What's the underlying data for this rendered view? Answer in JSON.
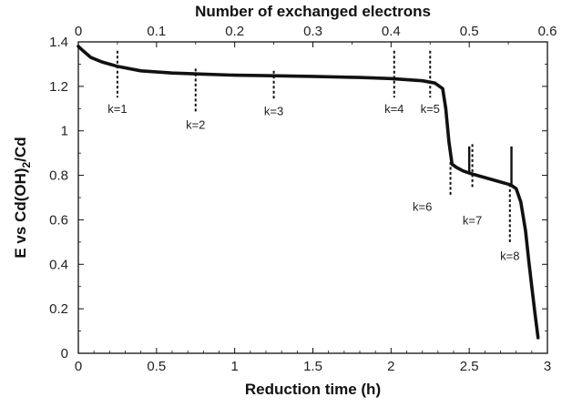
{
  "chart_data": {
    "type": "line",
    "title": "",
    "xlabel": "Reduction time (h)",
    "x2label": "Number of exchanged electrons",
    "ylabel_parts": {
      "main": "E vs Cd(OH)",
      "sub": "2",
      "tail": "/Cd"
    },
    "xlim": [
      0,
      3
    ],
    "x2lim": [
      0,
      0.6
    ],
    "ylim": [
      0,
      1.4
    ],
    "xticks": [
      0,
      0.5,
      1,
      1.5,
      2,
      2.5,
      3
    ],
    "xtick_labels": [
      "0",
      "0.5",
      "1",
      "1.5",
      "2",
      "2.5",
      "3"
    ],
    "x2ticks": [
      0,
      0.1,
      0.2,
      0.3,
      0.4,
      0.5,
      0.6
    ],
    "x2tick_labels": [
      "0",
      "0.1",
      "0.2",
      "0.3",
      "0.4",
      "0.5",
      "0.6"
    ],
    "yticks": [
      0,
      0.2,
      0.4,
      0.6,
      0.8,
      1,
      1.2,
      1.4
    ],
    "ytick_labels": [
      "0",
      "0.2",
      "0.4",
      "0.6",
      "0.8",
      "1",
      "1.2",
      "1.4"
    ],
    "grid": false,
    "legend": "none",
    "line_color": "#111111",
    "series": [
      {
        "x": [
          0,
          0.03,
          0.08,
          0.15,
          0.25,
          0.4,
          0.6,
          0.8,
          1.0,
          1.2,
          1.5,
          1.8,
          2.0,
          2.2,
          2.28,
          2.33,
          2.35,
          2.37,
          2.39,
          2.42,
          2.46,
          2.5,
          2.55,
          2.6,
          2.7,
          2.75,
          2.77,
          2.8,
          2.83,
          2.86,
          2.88,
          2.9,
          2.92,
          2.94
        ],
        "y": [
          1.38,
          1.36,
          1.33,
          1.31,
          1.29,
          1.27,
          1.26,
          1.255,
          1.25,
          1.248,
          1.245,
          1.24,
          1.235,
          1.225,
          1.215,
          1.19,
          1.1,
          0.95,
          0.85,
          0.835,
          0.82,
          0.81,
          0.8,
          0.79,
          0.77,
          0.76,
          0.755,
          0.74,
          0.68,
          0.55,
          0.42,
          0.3,
          0.18,
          0.07
        ]
      }
    ],
    "spikes": [
      {
        "x": 2.5,
        "y_from": 0.81,
        "y_to": 0.93
      },
      {
        "x": 2.77,
        "y_from": 0.76,
        "y_to": 0.93
      }
    ],
    "k_markers": [
      {
        "label": "k=1",
        "x": 0.25,
        "y_top": 1.36,
        "y_bottom": 1.15,
        "label_y": 1.08
      },
      {
        "label": "k=2",
        "x": 0.75,
        "y_top": 1.28,
        "y_bottom": 1.08,
        "label_y": 1.01
      },
      {
        "label": "k=3",
        "x": 1.25,
        "y_top": 1.27,
        "y_bottom": 1.14,
        "label_y": 1.07
      },
      {
        "label": "k=4",
        "x": 2.02,
        "y_top": 1.36,
        "y_bottom": 1.15,
        "label_y": 1.08
      },
      {
        "label": "k=5",
        "x": 2.25,
        "y_top": 1.36,
        "y_bottom": 1.15,
        "label_y": 1.08
      },
      {
        "label": "k=6",
        "x": 2.38,
        "y_top": 0.86,
        "y_bottom": 0.71,
        "label_y": 0.64,
        "label_dx": -0.18
      },
      {
        "label": "k=7",
        "x": 2.52,
        "y_top": 0.94,
        "y_bottom": 0.74,
        "label_y": 0.58
      },
      {
        "label": "k=8",
        "x": 2.76,
        "y_top": 0.76,
        "y_bottom": 0.49,
        "label_y": 0.42
      }
    ]
  }
}
